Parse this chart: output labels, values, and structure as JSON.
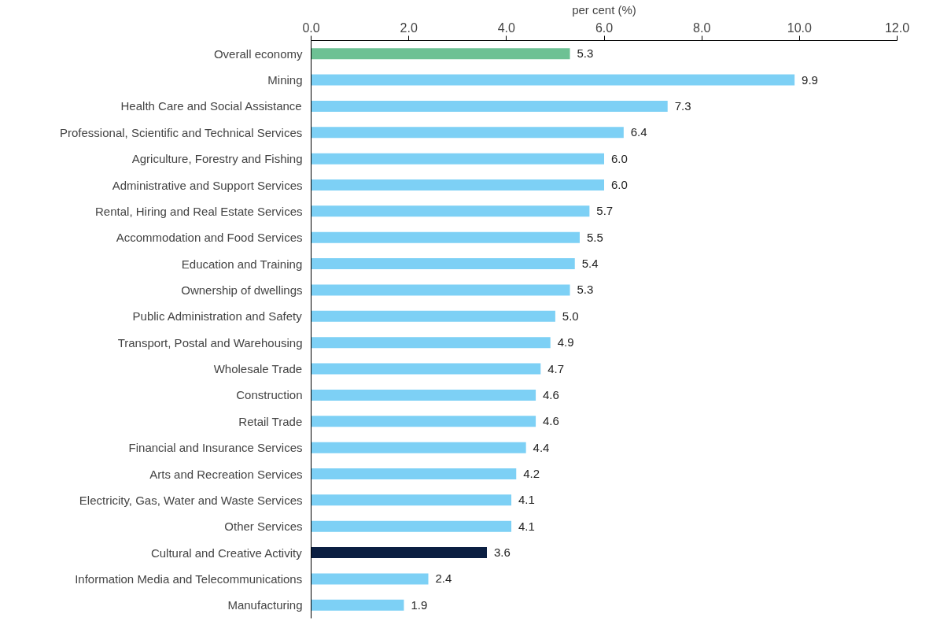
{
  "chart_data": {
    "type": "bar",
    "orientation": "horizontal",
    "xlabel": "per cent (%)",
    "categories": [
      "Overall economy",
      "Mining",
      "Health Care and Social Assistance",
      "Professional, Scientific and Technical Services",
      "Agriculture, Forestry and Fishing",
      "Administrative and Support Services",
      "Rental, Hiring and Real Estate Services",
      "Accommodation and Food Services",
      "Education and Training",
      "Ownership of dwellings",
      "Public Administration and Safety",
      "Transport, Postal and Warehousing",
      "Wholesale Trade",
      "Construction",
      "Retail Trade",
      "Financial and Insurance Services",
      "Arts and Recreation Services",
      "Electricity, Gas, Water and Waste Services",
      "Other Services",
      "Cultural and Creative Activity",
      "Information Media and Telecommunications",
      "Manufacturing"
    ],
    "values": [
      5.3,
      9.9,
      7.3,
      6.4,
      6.0,
      6.0,
      5.7,
      5.5,
      5.4,
      5.3,
      5.0,
      4.9,
      4.7,
      4.6,
      4.6,
      4.4,
      4.2,
      4.1,
      4.1,
      3.6,
      2.4,
      1.9
    ],
    "value_labels": [
      "5.3",
      "9.9",
      "7.3",
      "6.4",
      "6.0",
      "6.0",
      "5.7",
      "5.5",
      "5.4",
      "5.3",
      "5.0",
      "4.9",
      "4.7",
      "4.6",
      "4.6",
      "4.4",
      "4.2",
      "4.1",
      "4.1",
      "3.6",
      "2.4",
      "1.9"
    ],
    "colors": [
      "#6dc194",
      "#7dd0f5",
      "#7dd0f5",
      "#7dd0f5",
      "#7dd0f5",
      "#7dd0f5",
      "#7dd0f5",
      "#7dd0f5",
      "#7dd0f5",
      "#7dd0f5",
      "#7dd0f5",
      "#7dd0f5",
      "#7dd0f5",
      "#7dd0f5",
      "#7dd0f5",
      "#7dd0f5",
      "#7dd0f5",
      "#7dd0f5",
      "#7dd0f5",
      "#0b1f42",
      "#7dd0f5",
      "#7dd0f5"
    ],
    "xlim": [
      0,
      12
    ],
    "xticks": [
      {
        "value": 0,
        "label": "0.0"
      },
      {
        "value": 2,
        "label": "2.0"
      },
      {
        "value": 4,
        "label": "4.0"
      },
      {
        "value": 6,
        "label": "6.0"
      },
      {
        "value": 8,
        "label": "8.0"
      },
      {
        "value": 10,
        "label": "10.0"
      },
      {
        "value": 12,
        "label": "12.0"
      }
    ],
    "grid": false
  }
}
